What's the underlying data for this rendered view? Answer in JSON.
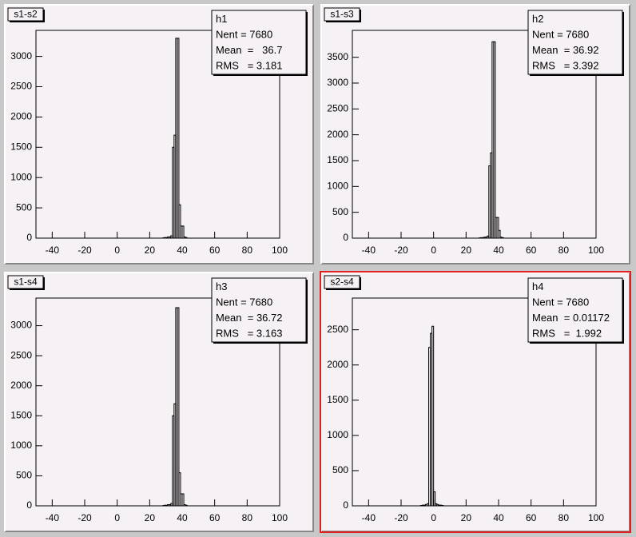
{
  "chart_data": [
    {
      "type": "histogram",
      "title": "s1-s2",
      "stats": {
        "name": "h1",
        "lines": [
          "Nent = 7680",
          "Mean  =   36.7",
          "RMS   = 3.181"
        ]
      },
      "bins": [
        28,
        29,
        30,
        31,
        32,
        33,
        34,
        35,
        36,
        37,
        38,
        39,
        40,
        41,
        42,
        43
      ],
      "counts": [
        5,
        10,
        10,
        20,
        20,
        40,
        1500,
        1700,
        3300,
        3300,
        550,
        200,
        200,
        20,
        10
      ],
      "xlim": [
        -50,
        100
      ],
      "xticks": [
        -40,
        -20,
        0,
        20,
        40,
        60,
        80,
        100
      ],
      "ylim": [
        0,
        3430
      ],
      "yticks": [
        0,
        500,
        1000,
        1500,
        2000,
        2500,
        3000
      ]
    },
    {
      "type": "histogram",
      "title": "s1-s3",
      "stats": {
        "name": "h2",
        "lines": [
          "Nent = 7680",
          "Mean  = 36.92",
          "RMS   = 3.392"
        ]
      },
      "bins": [
        28,
        29,
        30,
        31,
        32,
        33,
        34,
        35,
        36,
        37,
        38,
        39,
        40,
        41,
        42,
        43
      ],
      "counts": [
        5,
        10,
        10,
        20,
        20,
        40,
        1400,
        1650,
        3800,
        3800,
        400,
        400,
        150,
        20,
        10
      ],
      "xlim": [
        -50,
        100
      ],
      "xticks": [
        -40,
        -20,
        0,
        20,
        40,
        60,
        80,
        100
      ],
      "ylim": [
        0,
        4020
      ],
      "yticks": [
        0,
        500,
        1000,
        1500,
        2000,
        2500,
        3000,
        3500
      ]
    },
    {
      "type": "histogram",
      "title": "s1-s4",
      "stats": {
        "name": "h3",
        "lines": [
          "Nent = 7680",
          "Mean  = 36.72",
          "RMS   = 3.163"
        ]
      },
      "bins": [
        28,
        29,
        30,
        31,
        32,
        33,
        34,
        35,
        36,
        37,
        38,
        39,
        40,
        41,
        42,
        43
      ],
      "counts": [
        5,
        10,
        10,
        20,
        20,
        40,
        1500,
        1700,
        3300,
        3300,
        550,
        200,
        200,
        20,
        10
      ],
      "xlim": [
        -50,
        100
      ],
      "xticks": [
        -40,
        -20,
        0,
        20,
        40,
        60,
        80,
        100
      ],
      "ylim": [
        0,
        3460
      ],
      "yticks": [
        0,
        500,
        1000,
        1500,
        2000,
        2500,
        3000
      ]
    },
    {
      "type": "histogram",
      "title": "s2-s4",
      "stats": {
        "name": "h4",
        "lines": [
          "Nent = 7680",
          "Mean  = 0.01172",
          "RMS   =  1.992"
        ]
      },
      "bins": [
        -8,
        -7,
        -6,
        -5,
        -4,
        -3,
        -2,
        -1,
        0,
        1,
        2,
        3,
        4,
        5,
        6
      ],
      "counts": [
        5,
        10,
        10,
        20,
        30,
        2250,
        2450,
        2550,
        200,
        30,
        20,
        10,
        10,
        5
      ],
      "xlim": [
        -50,
        100
      ],
      "xticks": [
        -40,
        -20,
        0,
        20,
        40,
        60,
        80,
        100
      ],
      "ylim": [
        0,
        2950
      ],
      "yticks": [
        0,
        500,
        1000,
        1500,
        2000,
        2500
      ]
    }
  ]
}
